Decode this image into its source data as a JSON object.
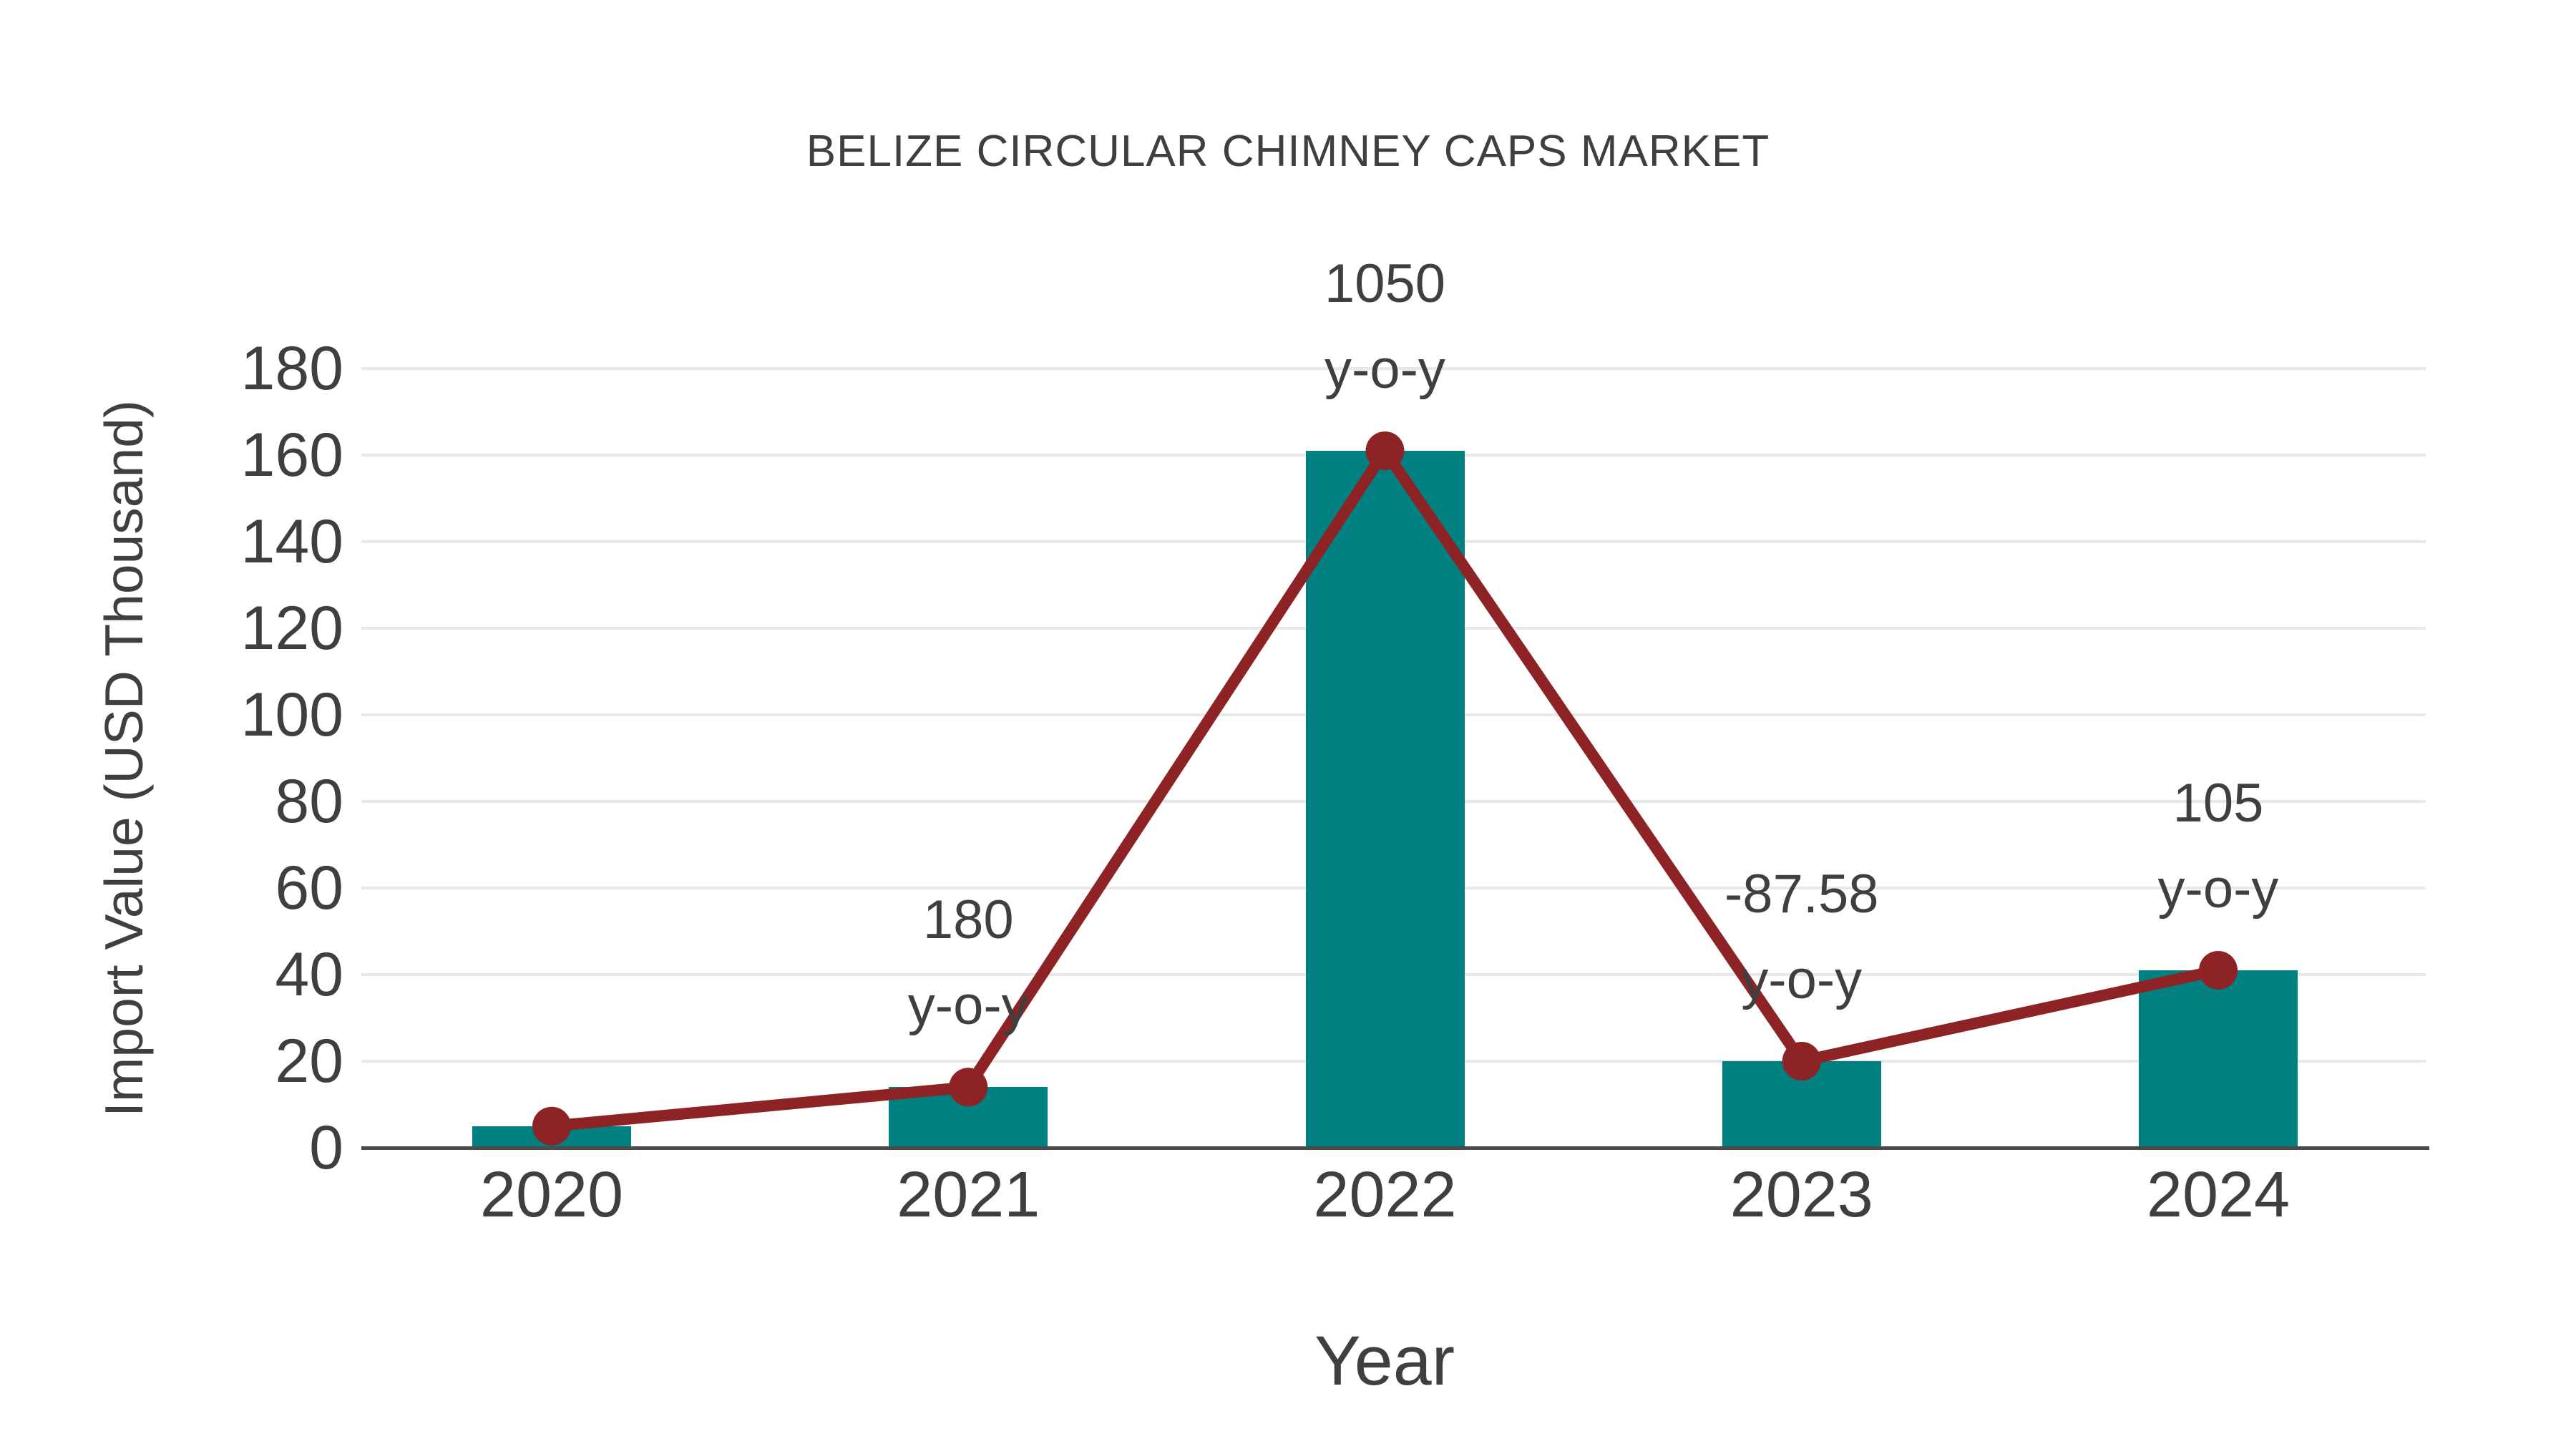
{
  "chart_data": {
    "type": "bar",
    "title": "BELIZE CIRCULAR CHIMNEY CAPS MARKET",
    "xlabel": "Year",
    "ylabel": "Import Value (USD Thousand)",
    "categories": [
      "2020",
      "2021",
      "2022",
      "2023",
      "2024"
    ],
    "series": [
      {
        "name": "import-value-bars",
        "type": "bar",
        "color": "#008080",
        "values": [
          5,
          14,
          161,
          20,
          41
        ]
      },
      {
        "name": "import-value-trend",
        "type": "line",
        "color": "#8E2326",
        "values": [
          5,
          14,
          161,
          20,
          41
        ]
      }
    ],
    "annotations": [
      {
        "category": "2021",
        "lines": [
          "180",
          "y-o-y"
        ]
      },
      {
        "category": "2022",
        "lines": [
          "1050",
          "y-o-y"
        ]
      },
      {
        "category": "2023",
        "lines": [
          "-87.58",
          "y-o-y"
        ]
      },
      {
        "category": "2024",
        "lines": [
          "105",
          "y-o-y"
        ]
      }
    ],
    "yticks": [
      0,
      20,
      40,
      60,
      80,
      100,
      120,
      140,
      160,
      180
    ],
    "ylim": [
      0,
      180
    ],
    "grid": true,
    "legend": false
  },
  "colors": {
    "bar": "#008080",
    "line": "#8E2326",
    "text": "#3F3F3F",
    "gridline": "#E8E8E8",
    "axis_line": "#4A4A4A",
    "background": "#FFFFFF"
  }
}
